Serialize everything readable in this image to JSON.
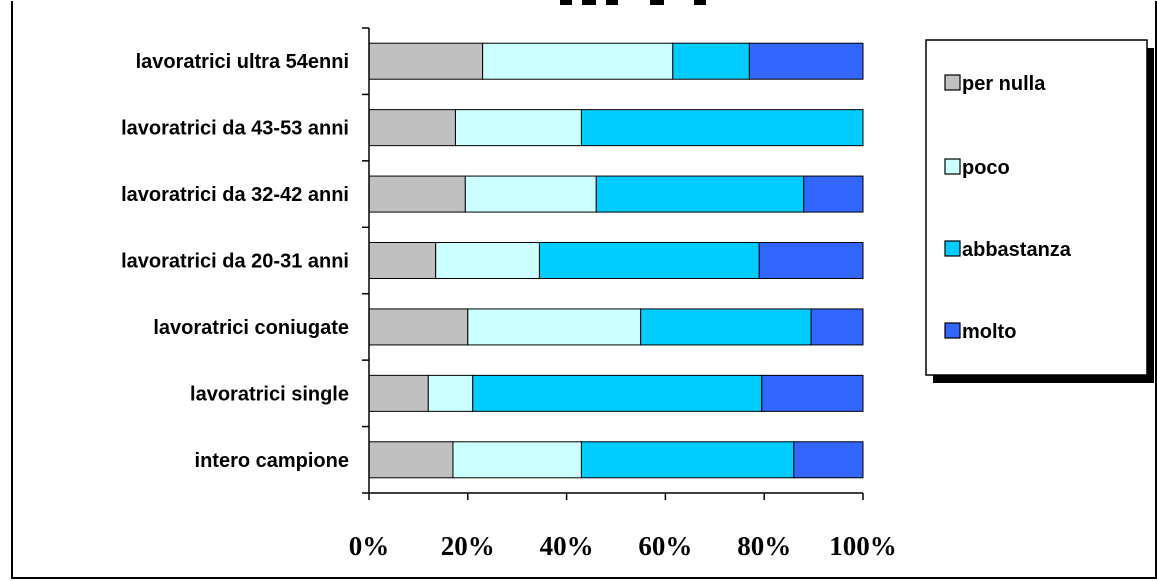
{
  "chart_data": {
    "type": "bar",
    "orientation": "horizontal",
    "stacked": true,
    "percent_stacked": true,
    "categories": [
      "lavoratrici ultra 54enni",
      "lavoratrici da 43-53 anni",
      "lavoratrici da 32-42 anni",
      "lavoratrici da 20-31 anni",
      "lavoratrici coniugate",
      "lavoratrici single",
      "intero campione"
    ],
    "series": [
      {
        "name": "per nulla",
        "color": "#c0c0c0",
        "values": [
          23,
          17.5,
          19.5,
          13.5,
          20,
          12,
          17
        ]
      },
      {
        "name": "poco",
        "color": "#ccffff",
        "values": [
          38.5,
          25.5,
          26.5,
          21,
          35,
          9,
          26
        ]
      },
      {
        "name": "abbastanza",
        "color": "#00ccff",
        "values": [
          15.5,
          57,
          42,
          44.5,
          34.5,
          58.5,
          43
        ]
      },
      {
        "name": "molto",
        "color": "#3366ff",
        "values": [
          23,
          0,
          12,
          21,
          10.5,
          20.5,
          14
        ]
      }
    ],
    "x_ticks": [
      "0%",
      "20%",
      "40%",
      "60%",
      "80%",
      "100%"
    ],
    "xlim": [
      0,
      100
    ],
    "grid": false,
    "legend_position": "right"
  }
}
